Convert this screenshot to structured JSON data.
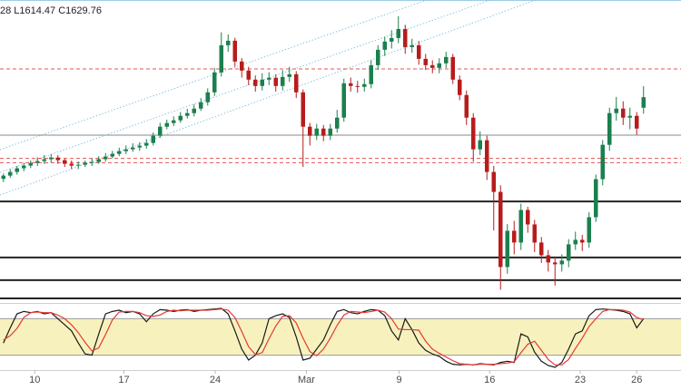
{
  "chart_data": {
    "type": "candlestick",
    "header": "28 L1614.47 C1629.76",
    "up_color": "#1b7f4e",
    "down_color": "#b71c1c",
    "ylim": [
      1438,
      1720
    ],
    "xlim": [
      0,
      100
    ],
    "xticks": [
      {
        "value": 5.1,
        "label": "10"
      },
      {
        "value": 18.2,
        "label": "17"
      },
      {
        "value": 31.6,
        "label": "24"
      },
      {
        "value": 45,
        "label": "Mar"
      },
      {
        "value": 58.6,
        "label": "9"
      },
      {
        "value": 71.9,
        "label": "16"
      },
      {
        "value": 85.2,
        "label": "23"
      },
      {
        "value": 93.5,
        "label": "26"
      }
    ],
    "levels": [
      {
        "value": 1594.6,
        "color": "#8a8a8a",
        "style": "solid",
        "width": 1
      },
      {
        "value": 1656,
        "color": "#e05555",
        "style": "dashed",
        "width": 1
      },
      {
        "value": 1573,
        "color": "#e05555",
        "style": "dashed",
        "width": 1
      },
      {
        "value": 1569,
        "color": "#e05555",
        "style": "dashed",
        "width": 1
      },
      {
        "value": 1533,
        "color": "#222222",
        "style": "solid",
        "width": 2
      },
      {
        "value": 1481,
        "color": "#222222",
        "style": "solid",
        "width": 2
      },
      {
        "value": 1460,
        "color": "#222222",
        "style": "solid",
        "width": 2
      },
      {
        "value": 1443,
        "color": "#222222",
        "style": "solid",
        "width": 2
      }
    ],
    "open": [
      1554.0,
      1557.0,
      1560.4,
      1563.8,
      1566.3,
      1568.8,
      1570.5,
      1572.2,
      1573.8,
      1571.3,
      1568.0,
      1566.3,
      1567.1,
      1568.8,
      1569.6,
      1572.2,
      1574.7,
      1577.2,
      1579.7,
      1581.4,
      1583.1,
      1584.8,
      1587.3,
      1594.0,
      1602.4,
      1605.8,
      1608.3,
      1612.5,
      1615.0,
      1619.2,
      1625.1,
      1634.3,
      1652.8,
      1678.0,
      1682.2,
      1662.9,
      1654.5,
      1646.1,
      1640.2,
      1646.1,
      1647.8,
      1640.2,
      1648.6,
      1651.1,
      1634.3,
      1602.4,
      1594.0,
      1600.7,
      1594.0,
      1600.7,
      1610.8,
      1642.7,
      1640.2,
      1639.4,
      1641.9,
      1659.5,
      1673.8,
      1681.4,
      1684.7,
      1693.1,
      1676.3,
      1678.0,
      1665.4,
      1659.5,
      1657.0,
      1661.2,
      1667.1,
      1646.1,
      1631.8,
      1610.8,
      1581.4,
      1589.8,
      1560.4,
      1541.9,
      1472.2,
      1505.8,
      1494.9,
      1525.1,
      1511.7,
      1494.9,
      1483.1,
      1476.4,
      1474.7,
      1478.1,
      1493.2,
      1497.4,
      1494.9,
      1518.4,
      1553.7,
      1585.6,
      1615.0,
      1619.2,
      1610.8,
      1612.5,
      1620.0
    ],
    "high": [
      1559,
      1563,
      1566,
      1569,
      1571,
      1574,
      1576,
      1577,
      1576,
      1573,
      1571,
      1570,
      1571,
      1573,
      1575,
      1578,
      1580,
      1583,
      1585,
      1587,
      1588,
      1591,
      1597,
      1606,
      1609,
      1612,
      1616,
      1619,
      1623,
      1629,
      1638,
      1657,
      1690,
      1688,
      1685,
      1666,
      1658,
      1650,
      1652,
      1653,
      1651,
      1655,
      1658,
      1654,
      1637,
      1606,
      1605,
      1604,
      1605,
      1618,
      1647,
      1648,
      1645,
      1647,
      1664,
      1678,
      1686,
      1692,
      1705,
      1697,
      1684,
      1682,
      1670,
      1664,
      1666,
      1672,
      1670,
      1650,
      1636,
      1615,
      1598,
      1594,
      1566,
      1548,
      1512,
      1515,
      1531,
      1528,
      1516,
      1500,
      1488,
      1482,
      1484,
      1498,
      1505,
      1502,
      1523,
      1558,
      1590,
      1620,
      1630,
      1626,
      1620,
      1616,
      1640
    ],
    "low": [
      1551,
      1555,
      1558,
      1561,
      1564,
      1566,
      1568,
      1569,
      1568,
      1565,
      1563,
      1563,
      1565,
      1566,
      1568,
      1570,
      1573,
      1575,
      1577,
      1579,
      1580,
      1582,
      1585,
      1592,
      1600,
      1603,
      1606,
      1610,
      1612,
      1617,
      1622,
      1631,
      1649,
      1672,
      1658,
      1648,
      1641,
      1635,
      1636,
      1641,
      1635,
      1636,
      1644,
      1629,
      1565,
      1585,
      1590,
      1589,
      1590,
      1597,
      1607,
      1635,
      1634,
      1635,
      1638,
      1655,
      1668,
      1675,
      1680,
      1670,
      1671,
      1660,
      1655,
      1652,
      1652,
      1657,
      1642,
      1627,
      1604,
      1570,
      1576,
      1553,
      1506,
      1451,
      1466,
      1484,
      1488,
      1504,
      1486,
      1476,
      1468,
      1455,
      1468,
      1472,
      1488,
      1487,
      1490,
      1514,
      1548,
      1580,
      1608,
      1604,
      1600,
      1595,
      1614.47
    ],
    "close": [
      1557.0,
      1560.4,
      1563.8,
      1566.3,
      1568.8,
      1570.5,
      1572.2,
      1573.8,
      1571.3,
      1568.0,
      1566.3,
      1567.1,
      1568.8,
      1569.6,
      1572.2,
      1574.7,
      1577.2,
      1579.7,
      1581.4,
      1583.1,
      1584.8,
      1587.3,
      1594.0,
      1602.4,
      1605.8,
      1608.3,
      1612.5,
      1615.0,
      1619.2,
      1625.1,
      1634.3,
      1652.8,
      1678.0,
      1682.2,
      1662.9,
      1654.5,
      1646.1,
      1640.2,
      1646.1,
      1647.8,
      1640.2,
      1648.6,
      1651.1,
      1634.3,
      1602.4,
      1594.0,
      1600.7,
      1594.0,
      1600.7,
      1610.8,
      1642.7,
      1640.2,
      1639.4,
      1641.9,
      1659.5,
      1673.8,
      1681.4,
      1684.7,
      1693.1,
      1676.3,
      1678.0,
      1665.4,
      1659.5,
      1657.0,
      1661.2,
      1667.1,
      1646.1,
      1631.8,
      1610.8,
      1581.4,
      1589.8,
      1560.4,
      1541.9,
      1472.2,
      1505.8,
      1494.9,
      1525.1,
      1511.7,
      1494.9,
      1483.1,
      1476.4,
      1474.7,
      1478.1,
      1493.2,
      1497.4,
      1494.9,
      1518.4,
      1553.7,
      1585.6,
      1615.0,
      1619.2,
      1610.8,
      1612.5,
      1600.7,
      1629.76
    ],
    "oscillator": {
      "type": "line",
      "ylim": [
        0,
        100
      ],
      "band": [
        20,
        80
      ],
      "band_color": "#f7f2bd",
      "series": [
        {
          "color": "#1a1a1a",
          "values": [
            40,
            65,
            88,
            92,
            90,
            92,
            88,
            90,
            80,
            70,
            60,
            40,
            22,
            20,
            55,
            88,
            92,
            94,
            90,
            92,
            88,
            75,
            88,
            95,
            94,
            92,
            94,
            95,
            92,
            94,
            95,
            96,
            97,
            88,
            60,
            30,
            12,
            20,
            40,
            80,
            85,
            88,
            82,
            50,
            12,
            15,
            30,
            45,
            70,
            92,
            95,
            90,
            88,
            92,
            95,
            94,
            85,
            60,
            45,
            80,
            62,
            40,
            28,
            22,
            18,
            10,
            5,
            4,
            5,
            4,
            6,
            5,
            4,
            8,
            10,
            8,
            55,
            50,
            25,
            10,
            3,
            0,
            8,
            30,
            55,
            60,
            85,
            95,
            96,
            95,
            94,
            92,
            88,
            65,
            80
          ]
        },
        {
          "color": "#e53935",
          "values": [
            45,
            52,
            64,
            82,
            90,
            91,
            90,
            90,
            86,
            80,
            70,
            57,
            41,
            27,
            32,
            54,
            78,
            91,
            92,
            92,
            90,
            85,
            84,
            86,
            92,
            94,
            93,
            94,
            94,
            94,
            94,
            95,
            96,
            94,
            82,
            59,
            34,
            21,
            24,
            47,
            68,
            84,
            85,
            73,
            48,
            26,
            19,
            30,
            48,
            69,
            86,
            92,
            91,
            90,
            92,
            94,
            91,
            80,
            63,
            62,
            62,
            61,
            43,
            30,
            23,
            17,
            11,
            6,
            5,
            4,
            5,
            5,
            5,
            6,
            7,
            9,
            24,
            38,
            43,
            28,
            13,
            4,
            4,
            13,
            31,
            48,
            67,
            80,
            92,
            95,
            95,
            94,
            91,
            82,
            78
          ]
        }
      ]
    }
  }
}
